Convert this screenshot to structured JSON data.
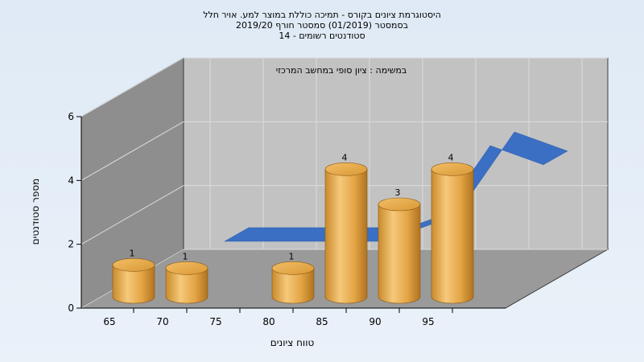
{
  "chart_data": {
    "type": "bar",
    "title_lines": [
      "היסטוגרמת ציונים בקורס - תמיכה כוללת במוצר למע. אויר חלל",
      "בסמסטר  (01/2019)  סמסטר חורף 2019/20",
      "סטודנטים רשומים - 14"
    ],
    "inner_title": "במשימה : ציון סופי במחשב המרכזי",
    "xlabel": "טווח ציונים",
    "ylabel": "מספר סטודנטים",
    "x_tick_labels": [
      "65",
      "70",
      "75",
      "80",
      "85",
      "90",
      "95"
    ],
    "y_tick_labels": [
      "0",
      "2",
      "4",
      "6"
    ],
    "ylim": [
      0,
      6
    ],
    "categories": [
      "65",
      "70",
      "75",
      "80",
      "85",
      "90",
      "95"
    ],
    "values": [
      1,
      1,
      0,
      1,
      4,
      3,
      4
    ],
    "data_labels": [
      "1",
      "1",
      "",
      "1",
      "4",
      "3",
      "4"
    ],
    "trend_line": [
      0,
      0,
      0,
      0,
      1,
      5,
      4
    ],
    "colors": {
      "bar_light": "#f6c97a",
      "bar_mid": "#e8a948",
      "bar_dark": "#b87a22",
      "ribbon_blue": "#3a6fc4",
      "ribbon_gray": "#707070",
      "wall_back": "#c2c2c2",
      "wall_side": "#8e8e8e",
      "floor": "#9a9a9a"
    }
  }
}
